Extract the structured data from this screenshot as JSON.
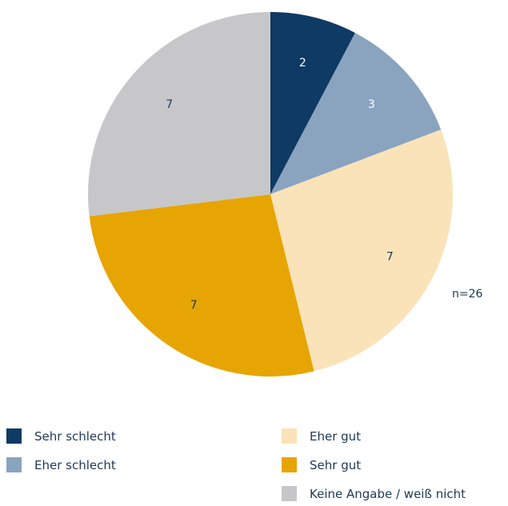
{
  "chart_data": {
    "type": "pie",
    "categories": [
      "Sehr schlecht",
      "Eher schlecht",
      "Eher gut",
      "Sehr gut",
      "Keine Angabe / weiß nicht"
    ],
    "values": [
      2,
      3,
      7,
      7,
      7
    ],
    "colors": [
      "#0e3a63",
      "#8aa4c0",
      "#fae3b8",
      "#e6a502",
      "#c7c7c9"
    ],
    "label_colors": [
      "#ffffff",
      "#ffffff",
      "#1f3a55",
      "#1f3a55",
      "#1f3a55"
    ],
    "note": "n=26",
    "legend_position": "bottom"
  }
}
